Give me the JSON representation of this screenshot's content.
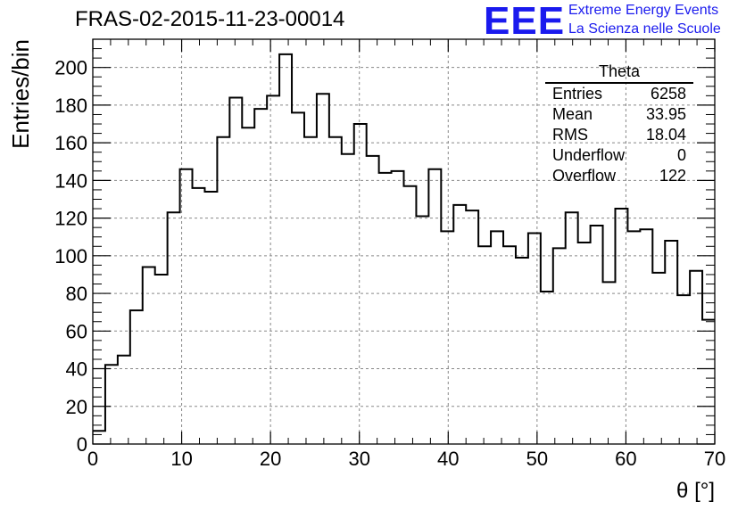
{
  "header": {
    "run_title": "FRAS-02-2015-11-23-00014",
    "logo_text": "EEE",
    "logo_line1": "Extreme Energy Events",
    "logo_line2": "La Scienza nelle Scuole"
  },
  "stats": {
    "title": "Theta",
    "rows": [
      {
        "label": "Entries",
        "value": "6258"
      },
      {
        "label": "Mean",
        "value": "33.95"
      },
      {
        "label": "RMS",
        "value": "18.04"
      },
      {
        "label": "Underflow",
        "value": "0"
      },
      {
        "label": "Overflow",
        "value": "122"
      }
    ]
  },
  "colors": {
    "logo": "#1a1aee",
    "line": "#000000",
    "grid": "#888888"
  },
  "chart_data": {
    "type": "bar",
    "style": "step-histogram",
    "xlabel": "θ [°]",
    "ylabel": "Entries/bin",
    "xlim": [
      0,
      70
    ],
    "ylim": [
      0,
      215
    ],
    "bin_width": 1.4,
    "grid": true,
    "x_ticks": [
      0,
      10,
      20,
      30,
      40,
      50,
      60,
      70
    ],
    "y_ticks": [
      0,
      20,
      40,
      60,
      80,
      100,
      120,
      140,
      160,
      180,
      200
    ],
    "values": [
      7,
      42,
      47,
      71,
      94,
      90,
      123,
      146,
      136,
      134,
      163,
      184,
      168,
      178,
      185,
      207,
      176,
      163,
      186,
      163,
      154,
      170,
      153,
      144,
      145,
      137,
      121,
      146,
      113,
      127,
      124,
      105,
      113,
      105,
      99,
      112,
      81,
      104,
      123,
      107,
      116,
      86,
      125,
      113,
      114,
      91,
      108,
      79,
      92,
      66
    ]
  }
}
